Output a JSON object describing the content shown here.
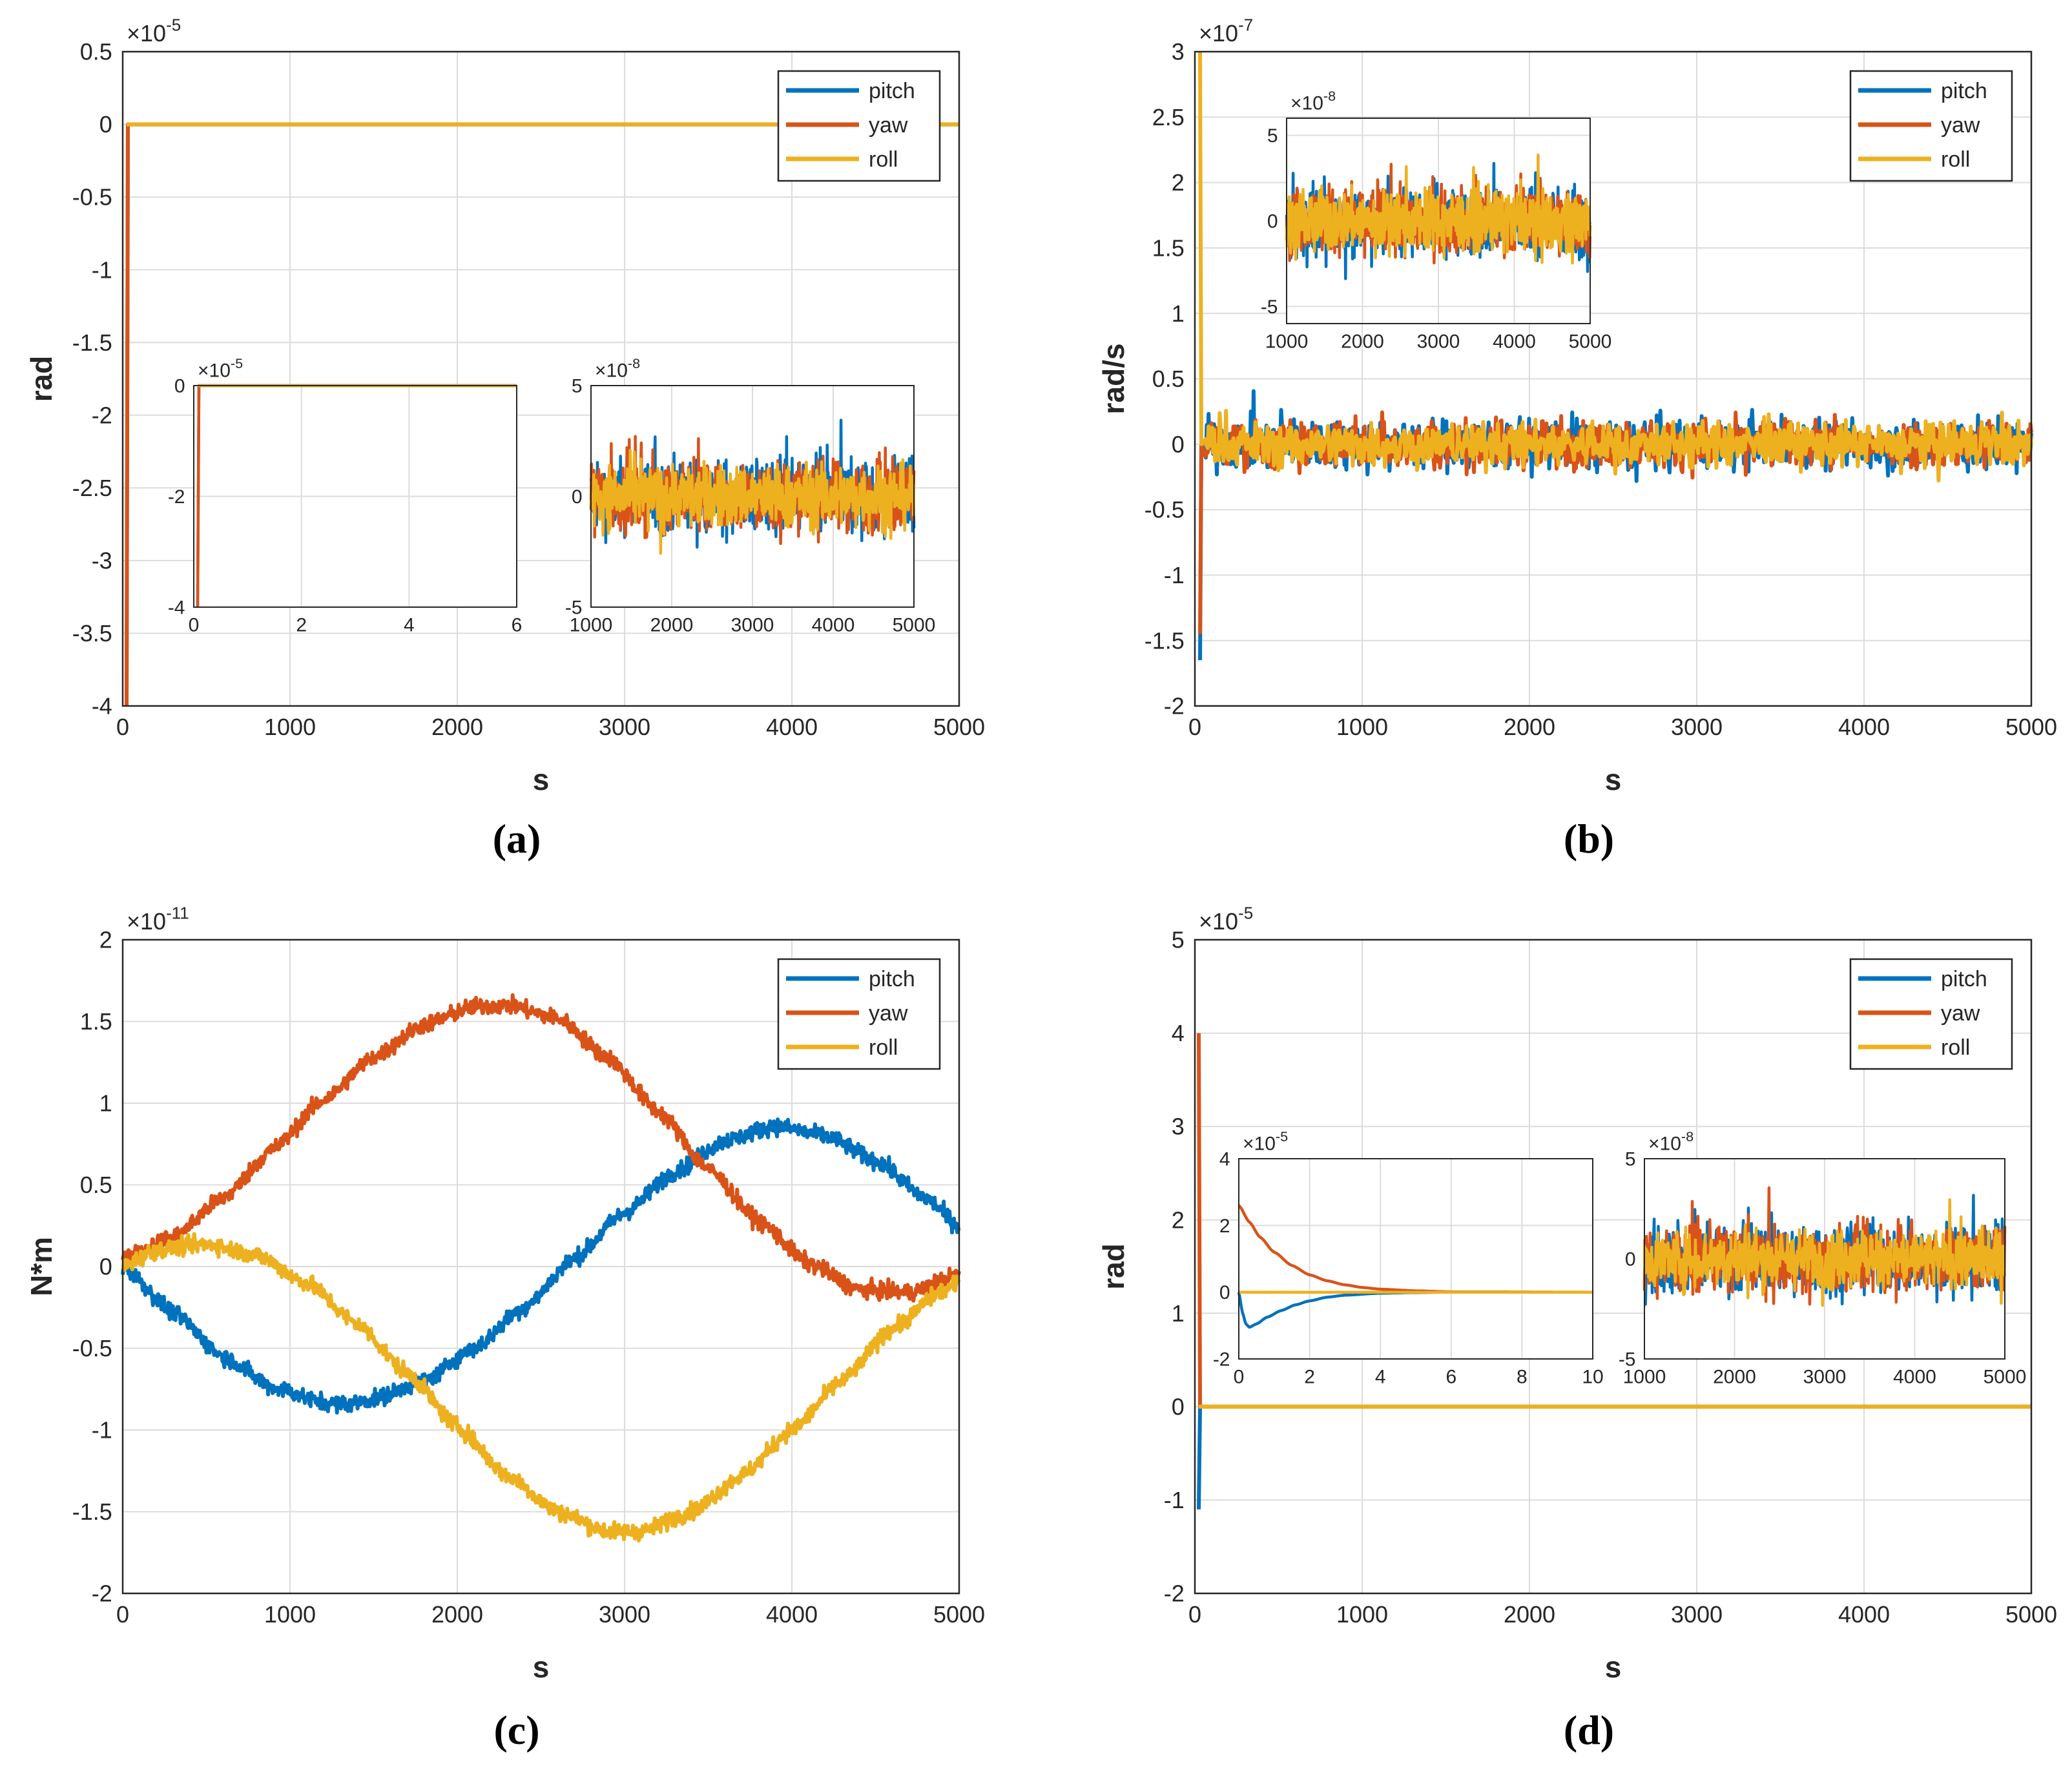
{
  "chart_data": [
    {
      "id": "a",
      "type": "line",
      "caption": "(a)",
      "xlabel": "s",
      "ylabel": "rad",
      "xlim": [
        0,
        5000
      ],
      "ylim": [
        -4,
        0.5
      ],
      "exponent": "-5",
      "xticks": [
        "0",
        "1000",
        "2000",
        "3000",
        "4000",
        "5000"
      ],
      "yticks": [
        "-4",
        "-3.5",
        "-3",
        "-2.5",
        "-2",
        "-1.5",
        "-1",
        "-0.5",
        "0",
        "0.5"
      ],
      "legend": [
        "pitch",
        "yaw",
        "roll"
      ],
      "series": [
        {
          "name": "pitch",
          "start": -4,
          "steady": 0,
          "noise": 0
        },
        {
          "name": "yaw",
          "start": -4,
          "steady": 0,
          "noise": 0
        },
        {
          "name": "roll",
          "start": 0,
          "steady": 0,
          "noise": 0
        }
      ],
      "insets": [
        {
          "xlim": [
            0,
            6
          ],
          "ylim": [
            -4,
            0
          ],
          "exponent": "-5",
          "xticks": [
            "0",
            "2",
            "4",
            "6"
          ],
          "yticks": [
            "-4",
            "-2",
            "0"
          ],
          "series": [
            {
              "name": "pitch",
              "start": -4,
              "steady": 0,
              "noise": 0
            },
            {
              "name": "yaw",
              "start": -4,
              "steady": 0,
              "noise": 0
            },
            {
              "name": "roll",
              "start": 0,
              "steady": 0,
              "noise": 0
            }
          ]
        },
        {
          "xlim": [
            1000,
            5000
          ],
          "ylim": [
            -5,
            5
          ],
          "exponent": "-8",
          "xticks": [
            "1000",
            "2000",
            "3000",
            "4000",
            "5000"
          ],
          "yticks": [
            "-5",
            "0",
            "5"
          ],
          "series": [
            {
              "name": "pitch",
              "mean": 0,
              "noise": 3.5
            },
            {
              "name": "yaw",
              "mean": 0,
              "noise": 3.3
            },
            {
              "name": "roll",
              "mean": 0,
              "noise": 3.0
            }
          ]
        }
      ]
    },
    {
      "id": "b",
      "type": "line",
      "caption": "(b)",
      "xlabel": "s",
      "ylabel": "rad/s",
      "xlim": [
        0,
        5000
      ],
      "ylim": [
        -2,
        3
      ],
      "exponent": "-7",
      "xticks": [
        "0",
        "1000",
        "2000",
        "3000",
        "4000",
        "5000"
      ],
      "yticks": [
        "-2",
        "-1.5",
        "-1",
        "-0.5",
        "0",
        "0.5",
        "1",
        "1.5",
        "2",
        "2.5",
        "3"
      ],
      "legend": [
        "pitch",
        "yaw",
        "roll"
      ],
      "series": [
        {
          "name": "pitch",
          "start": -1.65,
          "mean": 0,
          "noise": 0.45
        },
        {
          "name": "yaw",
          "start": -1.45,
          "mean": 0,
          "noise": 0.42
        },
        {
          "name": "roll",
          "start": 3.0,
          "mean": 0,
          "noise": 0.38
        }
      ],
      "insets": [
        {
          "xlim": [
            1000,
            5000
          ],
          "ylim": [
            -6,
            6
          ],
          "exponent": "-8",
          "xticks": [
            "1000",
            "2000",
            "3000",
            "4000",
            "5000"
          ],
          "yticks": [
            "-5",
            "0",
            "5"
          ],
          "series": [
            {
              "name": "pitch",
              "mean": 0,
              "noise": 4.3
            },
            {
              "name": "yaw",
              "mean": 0,
              "noise": 4.0
            },
            {
              "name": "roll",
              "mean": 0,
              "noise": 3.7
            }
          ]
        }
      ]
    },
    {
      "id": "c",
      "type": "line",
      "caption": "(c)",
      "xlabel": "s",
      "ylabel": "N*m",
      "xlim": [
        0,
        5000
      ],
      "ylim": [
        -2,
        2
      ],
      "exponent": "-11",
      "xticks": [
        "0",
        "1000",
        "2000",
        "3000",
        "4000",
        "5000"
      ],
      "yticks": [
        "-2",
        "-1.5",
        "-1",
        "-0.5",
        "0",
        "0.5",
        "1",
        "1.5",
        "2"
      ],
      "legend": [
        "pitch",
        "yaw",
        "roll"
      ],
      "series": [
        {
          "name": "pitch",
          "x": [
            0,
            300,
            600,
            900,
            1200,
            1350,
            1500,
            1800,
            2100,
            2400,
            2700,
            3000,
            3300,
            3600,
            3900,
            4200,
            4500,
            4800,
            5000
          ],
          "y": [
            0,
            -0.28,
            -0.55,
            -0.74,
            -0.83,
            -0.84,
            -0.81,
            -0.7,
            -0.5,
            -0.25,
            0.05,
            0.33,
            0.58,
            0.77,
            0.86,
            0.8,
            0.65,
            0.42,
            0.25
          ],
          "noise": 0.05
        },
        {
          "name": "yaw",
          "x": [
            0,
            300,
            600,
            900,
            1200,
            1500,
            1800,
            2100,
            2300,
            2600,
            2900,
            3200,
            3500,
            3800,
            4100,
            4400,
            4700,
            5000
          ],
          "y": [
            0.05,
            0.18,
            0.42,
            0.72,
            1.02,
            1.28,
            1.48,
            1.59,
            1.6,
            1.52,
            1.28,
            0.95,
            0.6,
            0.28,
            0.02,
            -0.14,
            -0.16,
            -0.05
          ],
          "noise": 0.05
        },
        {
          "name": "roll",
          "x": [
            0,
            200,
            500,
            800,
            1100,
            1400,
            1700,
            2000,
            2300,
            2600,
            2900,
            3100,
            3400,
            3700,
            4000,
            4300,
            4600,
            4900,
            5000
          ],
          "y": [
            0,
            0.1,
            0.14,
            0.07,
            -0.1,
            -0.35,
            -0.65,
            -0.98,
            -1.28,
            -1.5,
            -1.62,
            -1.62,
            -1.5,
            -1.28,
            -1.0,
            -0.7,
            -0.38,
            -0.15,
            -0.1
          ],
          "noise": 0.05
        }
      ]
    },
    {
      "id": "d",
      "type": "line",
      "caption": "(d)",
      "xlabel": "s",
      "ylabel": "rad",
      "xlim": [
        0,
        5000
      ],
      "ylim": [
        -2,
        5
      ],
      "exponent": "-5",
      "xticks": [
        "0",
        "1000",
        "2000",
        "3000",
        "4000",
        "5000"
      ],
      "yticks": [
        "-2",
        "-1",
        "0",
        "1",
        "2",
        "3",
        "4",
        "5"
      ],
      "legend": [
        "pitch",
        "yaw",
        "roll"
      ],
      "series": [
        {
          "name": "pitch",
          "start": -1.1,
          "steady": 0,
          "noise": 0
        },
        {
          "name": "yaw",
          "start": 4.0,
          "steady": 0,
          "noise": 0
        },
        {
          "name": "roll",
          "start": 0,
          "steady": 0,
          "noise": 0
        }
      ],
      "insets": [
        {
          "xlim": [
            0,
            10
          ],
          "ylim": [
            -2,
            4
          ],
          "exponent": "-5",
          "xticks": [
            "0",
            "2",
            "4",
            "6",
            "8",
            "10"
          ],
          "yticks": [
            "-2",
            "0",
            "2",
            "4"
          ],
          "series": [
            {
              "name": "pitch",
              "x": [
                0,
                0.1,
                0.2,
                0.3,
                0.5,
                0.8,
                1.2,
                1.6,
                2.0,
                2.5,
                3.0,
                4.0,
                5.0,
                6.0,
                10.0
              ],
              "y": [
                0,
                -0.6,
                -0.95,
                -1.05,
                -0.95,
                -0.75,
                -0.55,
                -0.38,
                -0.26,
                -0.15,
                -0.09,
                -0.03,
                -0.01,
                0,
                0
              ],
              "noise": 0
            },
            {
              "name": "yaw",
              "x": [
                0,
                0.3,
                0.6,
                1.0,
                1.5,
                2.0,
                2.5,
                3.0,
                3.5,
                4.0,
                5.0,
                6.0,
                10.0
              ],
              "y": [
                2.6,
                2.1,
                1.65,
                1.2,
                0.8,
                0.52,
                0.34,
                0.22,
                0.14,
                0.09,
                0.04,
                0.01,
                0
              ],
              "noise": 0
            },
            {
              "name": "roll",
              "x": [
                0,
                10
              ],
              "y": [
                0,
                0
              ],
              "noise": 0
            }
          ]
        },
        {
          "xlim": [
            1000,
            5000
          ],
          "ylim": [
            -5,
            5
          ],
          "exponent": "-8",
          "xticks": [
            "1000",
            "2000",
            "3000",
            "4000",
            "5000"
          ],
          "yticks": [
            "-5",
            "0",
            "5"
          ],
          "series": [
            {
              "name": "pitch",
              "mean": 0,
              "noise": 3.7
            },
            {
              "name": "yaw",
              "mean": 0,
              "noise": 3.4
            },
            {
              "name": "roll",
              "mean": 0,
              "noise": 3.1
            }
          ]
        }
      ]
    }
  ],
  "colors": {
    "pitch": "#0072BD",
    "yaw": "#D95319",
    "roll": "#EDB120",
    "grid": "#DCDCDC",
    "axis": "#262626"
  }
}
